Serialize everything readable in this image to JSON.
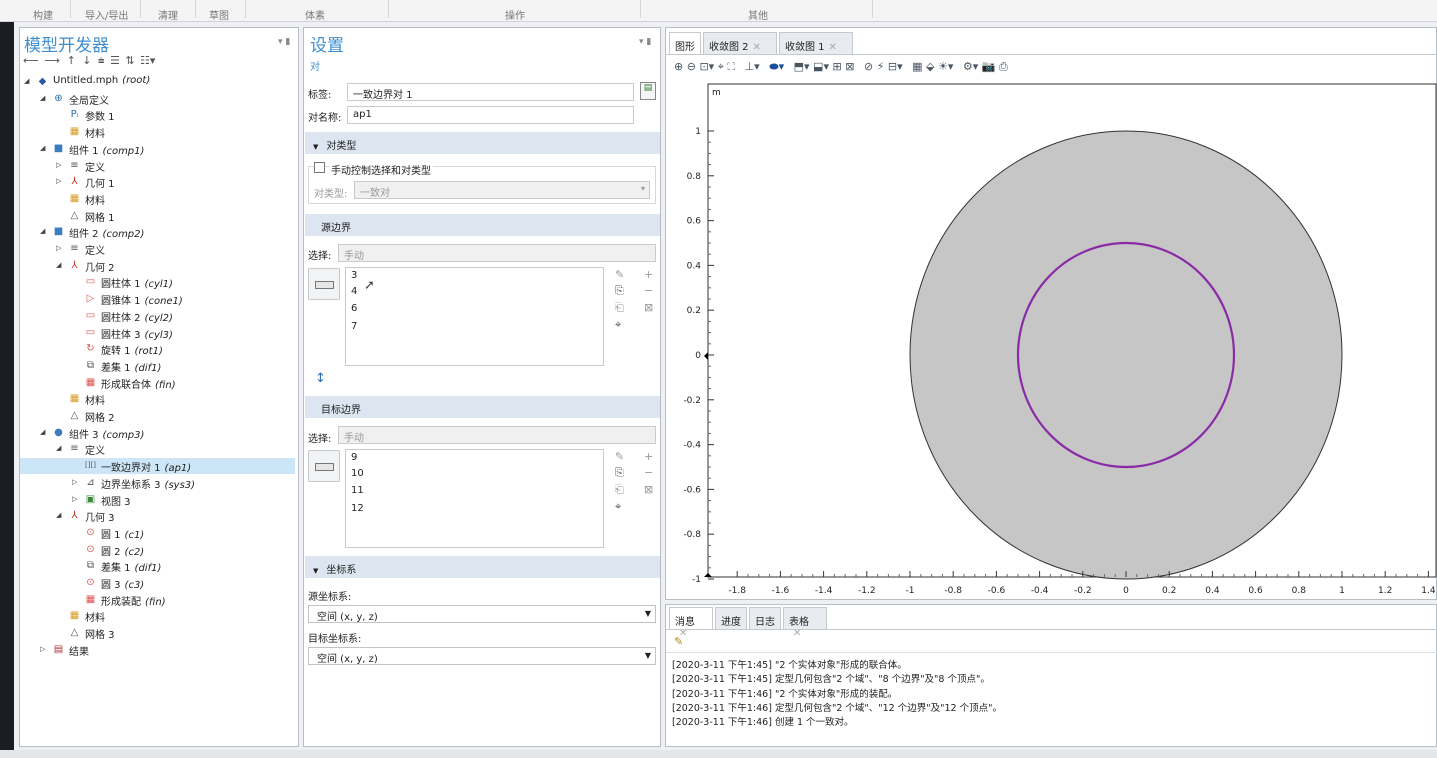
{
  "ribbon_groups": [
    "构建",
    "导入/导出",
    "清理",
    "草图",
    "体素",
    "操作",
    "其他"
  ],
  "left": {
    "title": "模型开发器",
    "toolbar_icons": [
      "arrow-left-icon",
      "arrow-right-icon",
      "arrow-up-icon",
      "arrow-down-icon",
      "expand-icon",
      "collapse-icon",
      "sort-icon",
      "more-icon"
    ],
    "tree": [
      {
        "level": 0,
        "arrow": "◢",
        "icon": "◆",
        "color": "#2c5aa0",
        "label": "Untitled.mph",
        "tag": "(root)"
      },
      {
        "level": 1,
        "arrow": "◢",
        "icon": "⊕",
        "color": "#2a6fb0",
        "label": "全局定义",
        "tag": ""
      },
      {
        "level": 2,
        "arrow": "",
        "icon": "Pᵢ",
        "color": "#2a6fb0",
        "label": "参数 1",
        "tag": ""
      },
      {
        "level": 2,
        "arrow": "",
        "icon": "▦",
        "color": "#d49a2a",
        "label": "材料",
        "tag": ""
      },
      {
        "level": 1,
        "arrow": "◢",
        "icon": "■",
        "color": "#3d7cc0",
        "label": "组件 1",
        "tag": "(comp1)"
      },
      {
        "level": 2,
        "arrow": "▷",
        "icon": "≡",
        "color": "#555",
        "label": "定义",
        "tag": ""
      },
      {
        "level": 2,
        "arrow": "▷",
        "icon": "⅄",
        "color": "#c0392b",
        "label": "几何 1",
        "tag": ""
      },
      {
        "level": 2,
        "arrow": "",
        "icon": "▦",
        "color": "#d49a2a",
        "label": "材料",
        "tag": ""
      },
      {
        "level": 2,
        "arrow": "",
        "icon": "△",
        "color": "#555",
        "label": "网格 1",
        "tag": ""
      },
      {
        "level": 1,
        "arrow": "◢",
        "icon": "■",
        "color": "#3d7cc0",
        "label": "组件 2",
        "tag": "(comp2)"
      },
      {
        "level": 2,
        "arrow": "▷",
        "icon": "≡",
        "color": "#555",
        "label": "定义",
        "tag": ""
      },
      {
        "level": 2,
        "arrow": "◢",
        "icon": "⅄",
        "color": "#c0392b",
        "label": "几何 2",
        "tag": ""
      },
      {
        "level": 3,
        "arrow": "",
        "icon": "▭",
        "color": "#d9534f",
        "label": "圆柱体 1",
        "tag": "(cyl1)"
      },
      {
        "level": 3,
        "arrow": "",
        "icon": "▷",
        "color": "#d9534f",
        "label": "圆锥体 1",
        "tag": "(cone1)"
      },
      {
        "level": 3,
        "arrow": "",
        "icon": "▭",
        "color": "#d9534f",
        "label": "圆柱体 2",
        "tag": "(cyl2)"
      },
      {
        "level": 3,
        "arrow": "",
        "icon": "▭",
        "color": "#d9534f",
        "label": "圆柱体 3",
        "tag": "(cyl3)"
      },
      {
        "level": 3,
        "arrow": "",
        "icon": "↻",
        "color": "#d9534f",
        "label": "旋转 1",
        "tag": "(rot1)"
      },
      {
        "level": 3,
        "arrow": "",
        "icon": "⧉",
        "color": "#555",
        "label": "差集 1",
        "tag": "(dif1)"
      },
      {
        "level": 3,
        "arrow": "",
        "icon": "▦",
        "color": "#d9534f",
        "label": "形成联合体",
        "tag": "(fin)"
      },
      {
        "level": 2,
        "arrow": "",
        "icon": "▦",
        "color": "#d49a2a",
        "label": "材料",
        "tag": ""
      },
      {
        "level": 2,
        "arrow": "",
        "icon": "△",
        "color": "#555",
        "label": "网格 2",
        "tag": ""
      },
      {
        "level": 1,
        "arrow": "◢",
        "icon": "●",
        "color": "#3d7cc0",
        "label": "组件 3",
        "tag": "(comp3)"
      },
      {
        "level": 2,
        "arrow": "◢",
        "icon": "≡",
        "color": "#555",
        "label": "定义",
        "tag": ""
      },
      {
        "level": 3,
        "arrow": "",
        "icon": "[][]",
        "color": "#555",
        "label": "一致边界对 1",
        "tag": "(ap1)",
        "selected": true
      },
      {
        "level": 3,
        "arrow": "▷",
        "icon": "⊿",
        "color": "#555",
        "label": "边界坐标系 3",
        "tag": "(sys3)"
      },
      {
        "level": 3,
        "arrow": "▷",
        "icon": "▣",
        "color": "#3a8a3a",
        "label": "视图 3",
        "tag": ""
      },
      {
        "level": 2,
        "arrow": "◢",
        "icon": "⅄",
        "color": "#c0392b",
        "label": "几何 3",
        "tag": ""
      },
      {
        "level": 3,
        "arrow": "",
        "icon": "⊙",
        "color": "#d9534f",
        "label": "圆 1",
        "tag": "(c1)"
      },
      {
        "level": 3,
        "arrow": "",
        "icon": "⊙",
        "color": "#d9534f",
        "label": "圆 2",
        "tag": "(c2)"
      },
      {
        "level": 3,
        "arrow": "",
        "icon": "⧉",
        "color": "#555",
        "label": "差集 1",
        "tag": "(dif1)"
      },
      {
        "level": 3,
        "arrow": "",
        "icon": "⊙",
        "color": "#d9534f",
        "label": "圆 3",
        "tag": "(c3)"
      },
      {
        "level": 3,
        "arrow": "",
        "icon": "▦",
        "color": "#d9534f",
        "label": "形成装配",
        "tag": "(fin)"
      },
      {
        "level": 2,
        "arrow": "",
        "icon": "▦",
        "color": "#d49a2a",
        "label": "材料",
        "tag": ""
      },
      {
        "level": 2,
        "arrow": "",
        "icon": "△",
        "color": "#555",
        "label": "网格 3",
        "tag": ""
      },
      {
        "level": 1,
        "arrow": "▷",
        "icon": "▤",
        "color": "#b0303a",
        "label": "结果",
        "tag": ""
      }
    ]
  },
  "settings": {
    "title": "设置",
    "subtitle": "对",
    "label_label": "标签:",
    "label_value": "一致边界对 1",
    "pair_name_label": "对名称:",
    "pair_name_value": "ap1",
    "pair_type_section": "对类型",
    "manual_checkbox": "手动控制选择和对类型",
    "pair_type_label": "对类型:",
    "pair_type_value": "一致对",
    "source_section": "源边界",
    "selection_label": "选择:",
    "source_selection": "手动",
    "source_items": [
      "3",
      "4",
      "6",
      "7"
    ],
    "target_section": "目标边界",
    "target_selection": "手动",
    "target_items": [
      "9",
      "10",
      "11",
      "12"
    ],
    "coord_section": "坐标系",
    "source_coord_label": "源坐标系:",
    "source_coord_value": "空间  (x, y, z)",
    "target_coord_label": "目标坐标系:",
    "target_coord_value": "空间  (x, y, z)"
  },
  "graphics": {
    "tabs": [
      {
        "label": "图形",
        "closable": false,
        "active": true
      },
      {
        "label": "收敛图 2",
        "closable": true,
        "active": false
      },
      {
        "label": "收敛图 1",
        "closable": true,
        "active": false
      }
    ],
    "unit": "m",
    "colors": {
      "disk": "#c6c6c6",
      "ring": "#8b2aa6",
      "outline": "#333333"
    },
    "y_ticks": [
      "1",
      "0.8",
      "0.6",
      "0.4",
      "0.2",
      "0",
      "-0.2",
      "-0.4",
      "-0.6",
      "-0.8",
      "-1"
    ],
    "x_ticks": [
      "-1.8",
      "-1.6",
      "-1.4",
      "-1.2",
      "-1",
      "-0.8",
      "-0.6",
      "-0.4",
      "-0.2",
      "0",
      "0.2",
      "0.4",
      "0.6",
      "0.8",
      "1",
      "1.2",
      "1.4"
    ]
  },
  "messages": {
    "tabs": [
      {
        "label": "消息",
        "closable": true,
        "active": true
      },
      {
        "label": "进度",
        "closable": false,
        "active": false
      },
      {
        "label": "日志",
        "closable": false,
        "active": false
      },
      {
        "label": "表格",
        "closable": true,
        "active": false
      }
    ],
    "lines": [
      "[2020-3-11 下午1:45] \"2 个实体对象\"形成的联合体。",
      "[2020-3-11 下午1:45] 定型几何包含\"2 个域\"、\"8 个边界\"及\"8 个顶点\"。",
      "[2020-3-11 下午1:46] \"2 个实体对象\"形成的装配。",
      "[2020-3-11 下午1:46] 定型几何包含\"2 个域\"、\"12 个边界\"及\"12 个顶点\"。",
      "[2020-3-11 下午1:46] 创建 1 个一致对。"
    ]
  }
}
